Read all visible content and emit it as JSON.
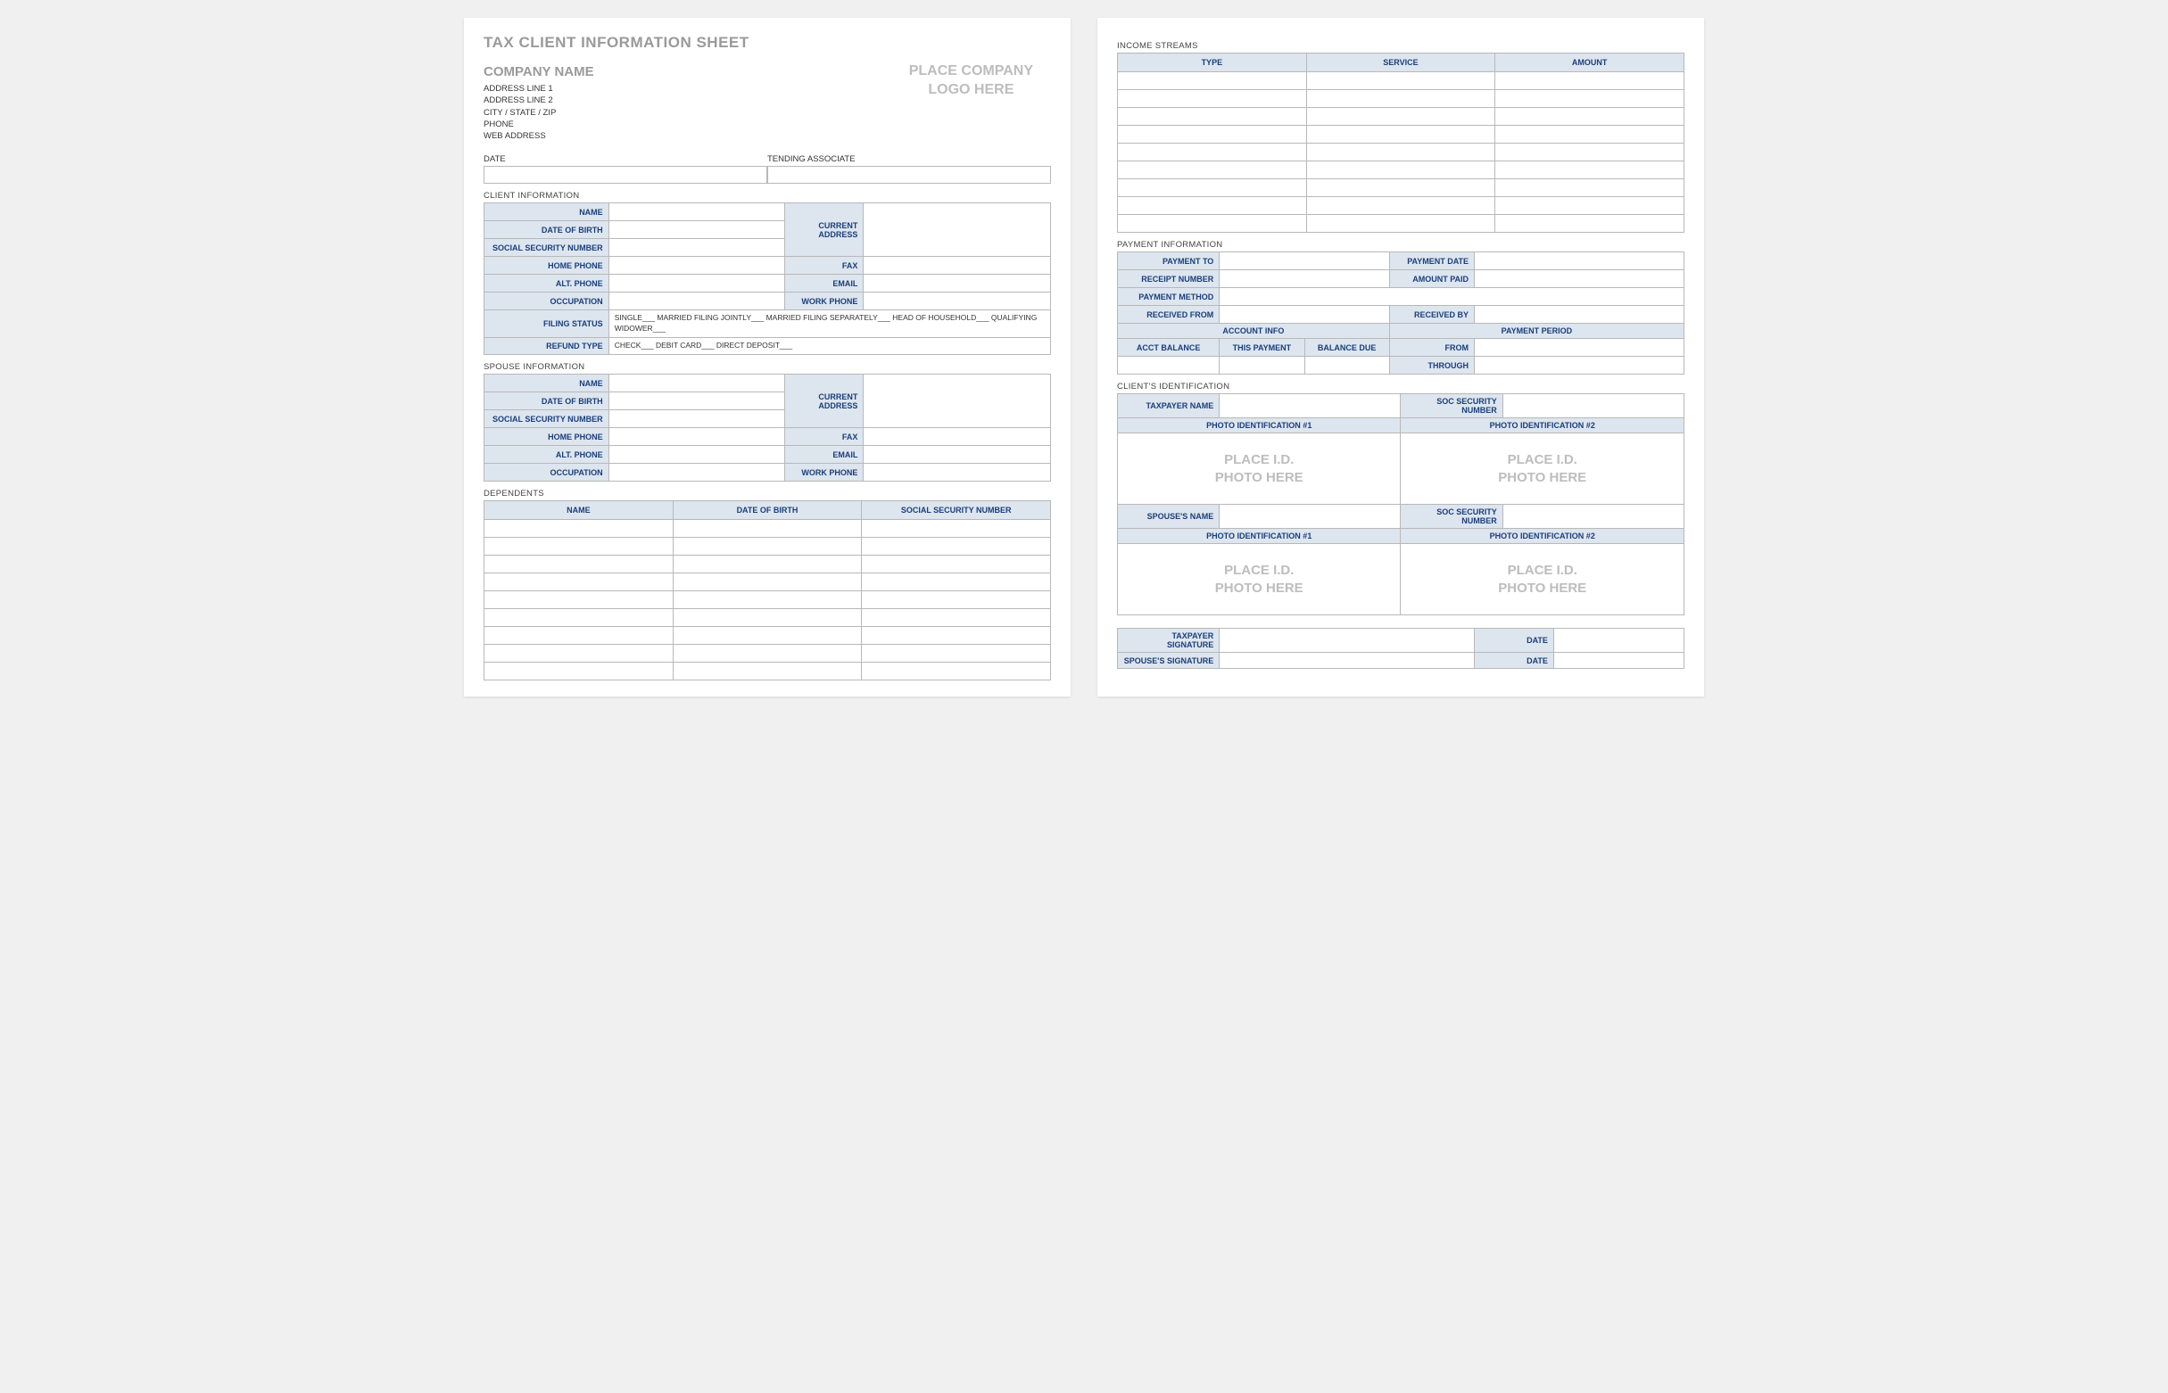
{
  "colors": {
    "header_bg": "#dde5ef",
    "header_text": "#1a3e7a",
    "border": "#b8b8b8",
    "gray_text": "#9a9a9a",
    "placeholder_gray": "#bdbdbd",
    "page_bg": "#ffffff"
  },
  "left": {
    "title": "TAX CLIENT INFORMATION SHEET",
    "company": {
      "name": "COMPANY NAME",
      "lines": [
        "ADDRESS LINE 1",
        "ADDRESS LINE 2",
        "CITY / STATE / ZIP",
        "PHONE",
        "WEB ADDRESS"
      ],
      "logo_placeholder_l1": "PLACE COMPANY",
      "logo_placeholder_l2": "LOGO HERE"
    },
    "top_fields": {
      "date": "DATE",
      "tending": "TENDING ASSOCIATE"
    },
    "client_info": {
      "section": "CLIENT INFORMATION",
      "name": "NAME",
      "dob": "DATE OF BIRTH",
      "ssn": "SOCIAL SECURITY NUMBER",
      "current_address": "CURRENT ADDRESS",
      "home_phone": "HOME PHONE",
      "fax": "FAX",
      "alt_phone": "ALT. PHONE",
      "email": "EMAIL",
      "occupation": "OCCUPATION",
      "work_phone": "WORK PHONE",
      "filing_status": "FILING STATUS",
      "filing_options": "SINGLE___   MARRIED FILING JOINTLY___   MARRIED FILING SEPARATELY___   HEAD OF HOUSEHOLD___   QUALIFYING WIDOWER___",
      "refund_type": "REFUND TYPE",
      "refund_options": "CHECK___   DEBIT CARD___   DIRECT DEPOSIT___"
    },
    "spouse_info": {
      "section": "SPOUSE INFORMATION",
      "name": "NAME",
      "dob": "DATE OF BIRTH",
      "ssn": "SOCIAL SECURITY NUMBER",
      "current_address": "CURRENT ADDRESS",
      "home_phone": "HOME PHONE",
      "fax": "FAX",
      "alt_phone": "ALT. PHONE",
      "email": "EMAIL",
      "occupation": "OCCUPATION",
      "work_phone": "WORK PHONE"
    },
    "dependents": {
      "section": "DEPENDENTS",
      "cols": [
        "NAME",
        "DATE OF BIRTH",
        "SOCIAL SECURITY NUMBER"
      ],
      "row_count": 9
    }
  },
  "right": {
    "income": {
      "section": "INCOME STREAMS",
      "cols": [
        "TYPE",
        "SERVICE",
        "AMOUNT"
      ],
      "row_count": 9
    },
    "payment": {
      "section": "PAYMENT INFORMATION",
      "payment_to": "PAYMENT TO",
      "payment_date": "PAYMENT DATE",
      "receipt_number": "RECEIPT NUMBER",
      "amount_paid": "AMOUNT PAID",
      "payment_method": "PAYMENT METHOD",
      "received_from": "RECEIVED FROM",
      "received_by": "RECEIVED BY",
      "account_info": "ACCOUNT INFO",
      "payment_period": "PAYMENT PERIOD",
      "acct_balance": "ACCT BALANCE",
      "this_payment": "THIS PAYMENT",
      "balance_due": "BALANCE DUE",
      "from": "FROM",
      "through": "THROUGH"
    },
    "client_id": {
      "section": "CLIENT'S IDENTIFICATION",
      "taxpayer_name": "TAXPAYER NAME",
      "soc_sec": "SOC SECURITY NUMBER",
      "photo1": "PHOTO IDENTIFICATION #1",
      "photo2": "PHOTO IDENTIFICATION #2",
      "spouse_name": "SPOUSE'S NAME",
      "placeholder_l1": "PLACE I.D.",
      "placeholder_l2": "PHOTO HERE"
    },
    "signatures": {
      "taxpayer": "TAXPAYER SIGNATURE",
      "spouse": "SPOUSE'S SIGNATURE",
      "date": "DATE"
    }
  }
}
